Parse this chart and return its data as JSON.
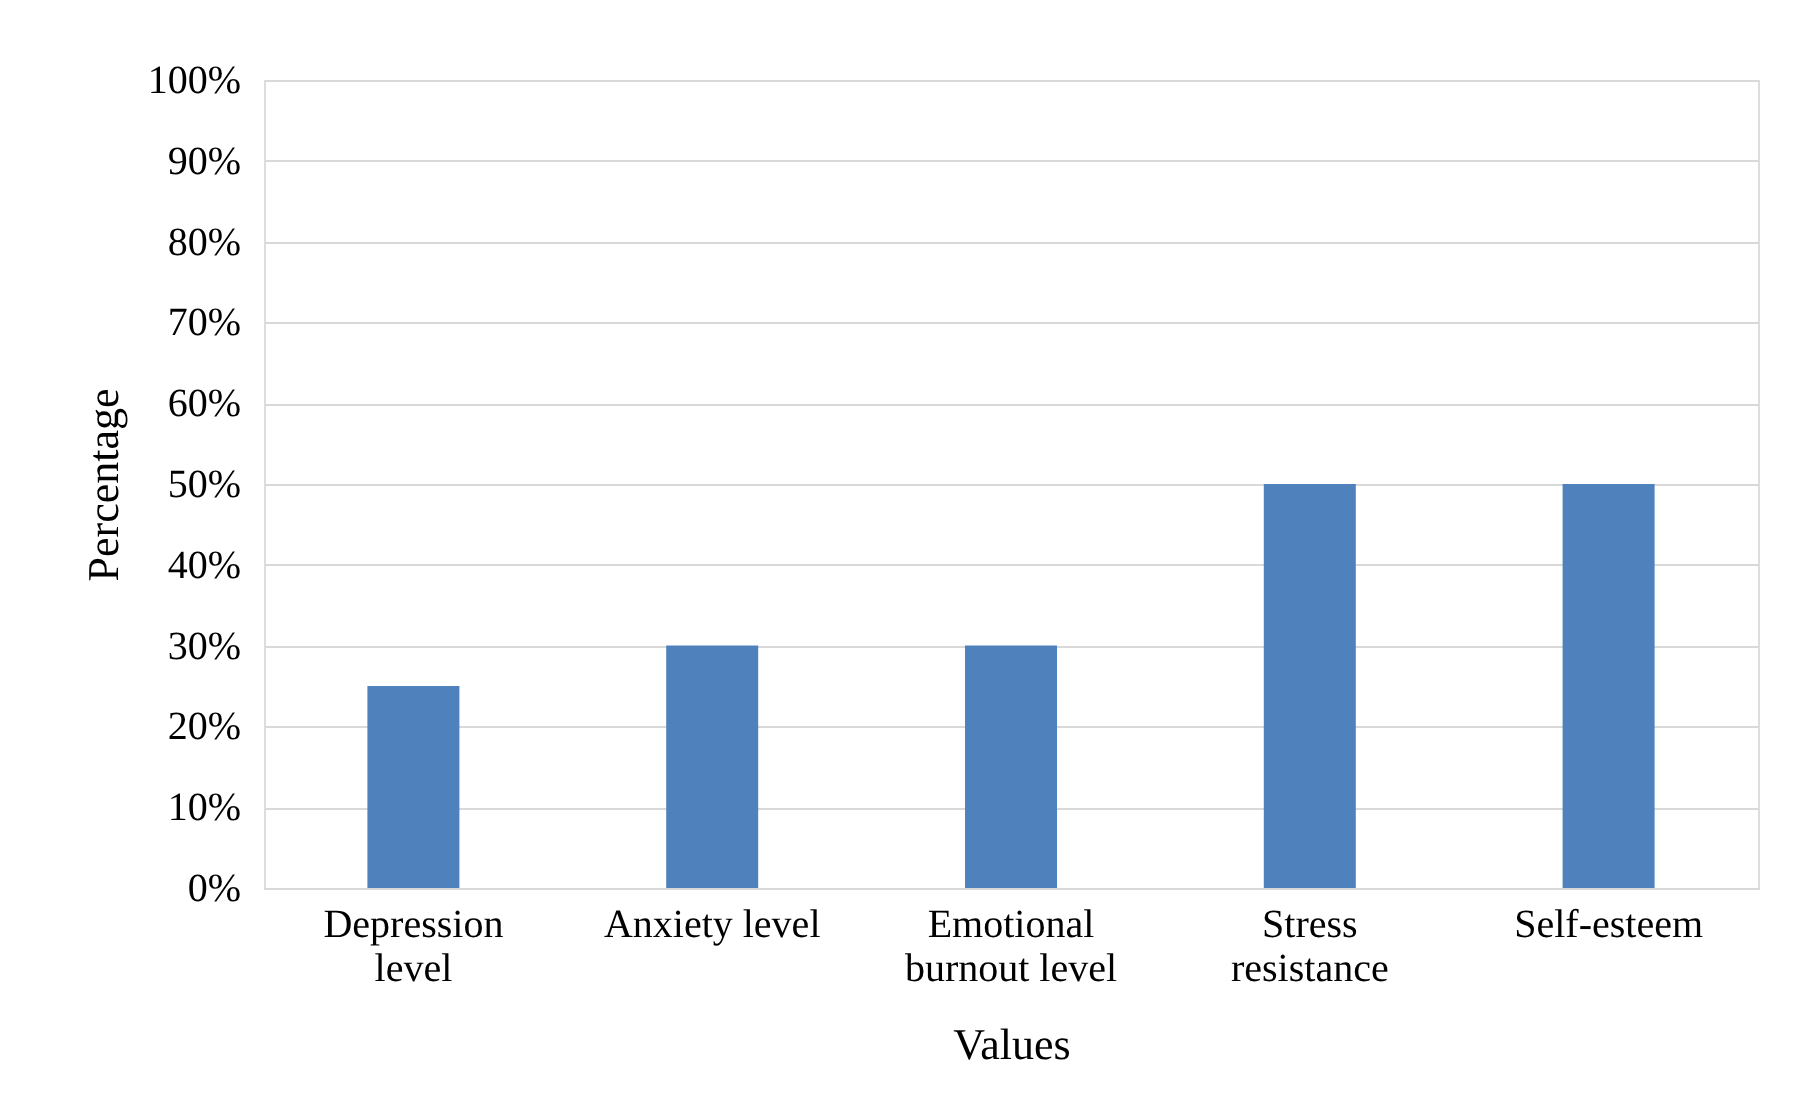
{
  "chart_data": {
    "type": "bar",
    "xlabel": "Values",
    "ylabel": "Percentage",
    "categories": [
      "Depression level",
      "Anxiety level",
      "Emotional burnout level",
      "Stress resistance",
      "Self-esteem"
    ],
    "values": [
      25,
      30,
      30,
      50,
      50
    ],
    "color": "#4f81bd",
    "ylim": [
      0,
      100
    ],
    "yticks": [
      {
        "value": 0,
        "label": "0%"
      },
      {
        "value": 10,
        "label": "10%"
      },
      {
        "value": 20,
        "label": "20%"
      },
      {
        "value": 30,
        "label": "30%"
      },
      {
        "value": 40,
        "label": "40%"
      },
      {
        "value": 50,
        "label": "50%"
      },
      {
        "value": 60,
        "label": "60%"
      },
      {
        "value": 70,
        "label": "70%"
      },
      {
        "value": 80,
        "label": "80%"
      },
      {
        "value": 90,
        "label": "90%"
      },
      {
        "value": 100,
        "label": "100%"
      }
    ],
    "grid": "y"
  }
}
